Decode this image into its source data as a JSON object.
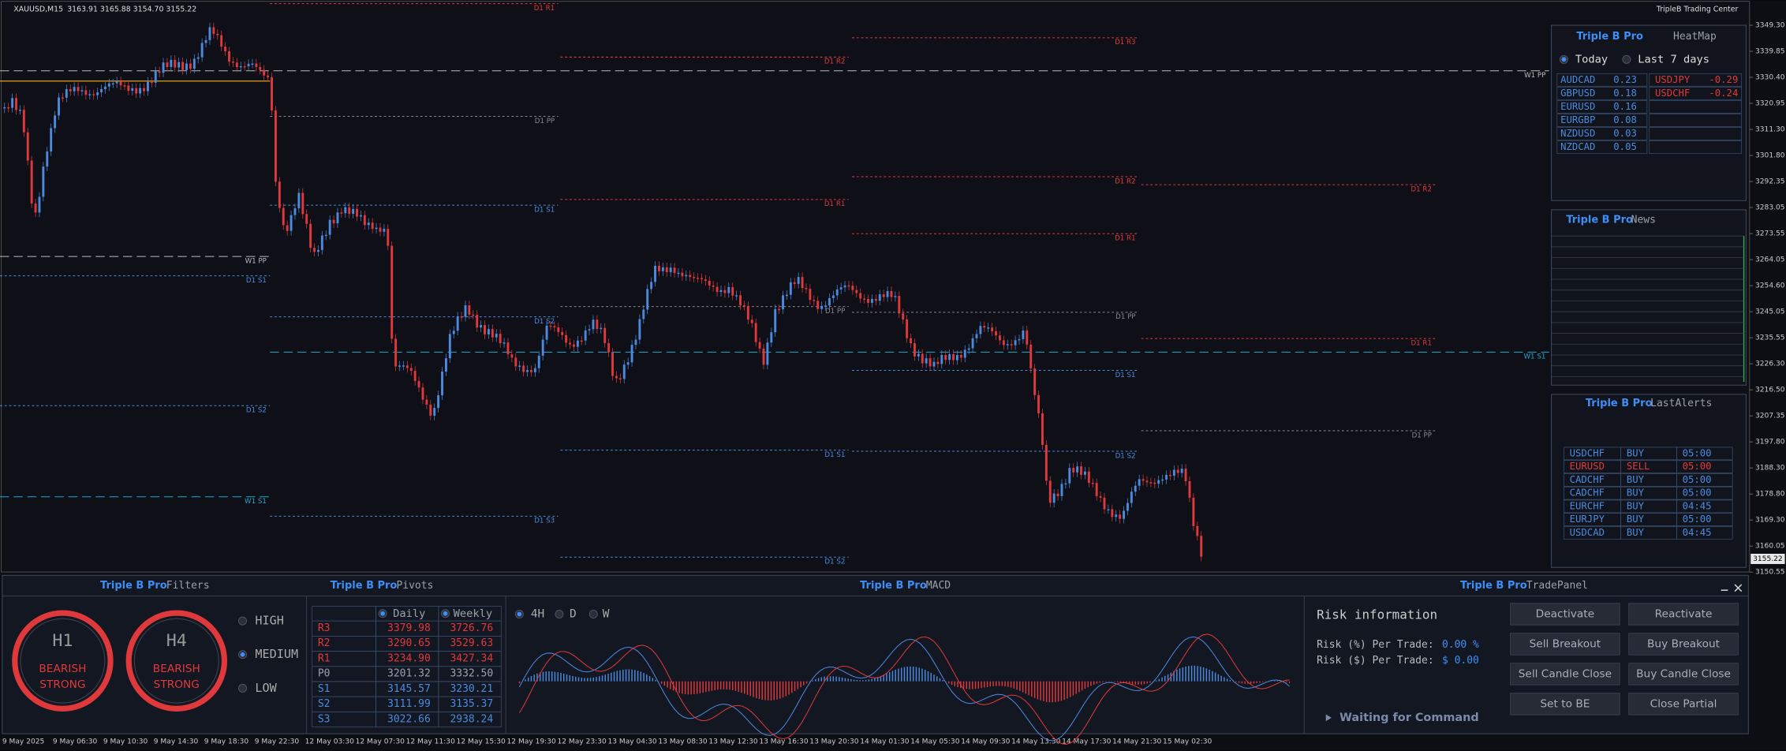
{
  "chart": {
    "symbol": "XAUUSD,M15",
    "ohlc": "3163.91 3165.88 3154.70 3155.22",
    "brand": "TripleB Trading Center",
    "price_axis": [
      "3349.30",
      "3339.85",
      "3330.40",
      "3320.95",
      "3311.30",
      "3301.80",
      "3292.35",
      "3283.05",
      "3273.55",
      "3264.05",
      "3254.60",
      "3245.05",
      "3235.55",
      "3226.30",
      "3216.50",
      "3207.35",
      "3197.80",
      "3188.30",
      "3178.80",
      "3169.30",
      "3160.05",
      "3150.55"
    ],
    "current_price": "3155.22",
    "time_axis": [
      "9 May 2025",
      "9 May 06:30",
      "9 May 10:30",
      "9 May 14:30",
      "9 May 18:30",
      "9 May 22:30",
      "12 May 03:30",
      "12 May 07:30",
      "12 May 11:30",
      "12 May 15:30",
      "12 May 19:30",
      "12 May 23:30",
      "13 May 04:30",
      "13 May 08:30",
      "13 May 12:30",
      "13 May 16:30",
      "13 May 20:30",
      "14 May 01:30",
      "14 May 05:30",
      "14 May 09:30",
      "14 May 13:30",
      "14 May 17:30",
      "14 May 21:30",
      "15 May 02:30"
    ],
    "levels": [
      "D1 R1",
      "D1 R2",
      "D1 R3",
      "W1 PP",
      "D1 PP",
      "D1 R2",
      "D1 R2",
      "D1 R1",
      "D1 S1",
      "D1 R1",
      "W1 PP",
      "D1 S1",
      "D1 PP",
      "D1 PP",
      "D1 S2",
      "D1 R1",
      "W1 S1",
      "D1 S1",
      "D1 S2",
      "D1 PP",
      "D1 S1",
      "D1 S2",
      "W1 S1",
      "D1 S3",
      "D1 S2"
    ]
  },
  "heatmap": {
    "brand": "Triple B Pro",
    "title": "HeatMap",
    "options": [
      "Today",
      "Last 7 days"
    ],
    "positive": [
      [
        "AUDCAD",
        "0.23"
      ],
      [
        "GBPUSD",
        "0.18"
      ],
      [
        "EURUSD",
        "0.16"
      ],
      [
        "EURGBP",
        "0.08"
      ],
      [
        "NZDUSD",
        "0.03"
      ],
      [
        "NZDCAD",
        "0.05"
      ]
    ],
    "negative": [
      [
        "USDJPY",
        "-0.29"
      ],
      [
        "USDCHF",
        "-0.24"
      ]
    ]
  },
  "news": {
    "brand": "Triple B Pro",
    "title": "News"
  },
  "alerts": {
    "brand": "Triple B Pro",
    "title": "LastAlerts",
    "rows": [
      [
        "USDCHF",
        "BUY",
        "05:00"
      ],
      [
        "EURUSD",
        "SELL",
        "05:00"
      ],
      [
        "CADCHF",
        "BUY",
        "05:00"
      ],
      [
        "CADCHF",
        "BUY",
        "05:00"
      ],
      [
        "EURCHF",
        "BUY",
        "04:45"
      ],
      [
        "EURJPY",
        "BUY",
        "05:00"
      ],
      [
        "USDCAD",
        "BUY",
        "04:45"
      ]
    ]
  },
  "filters": {
    "brand": "Triple B Pro",
    "title": "Filters",
    "gauges": [
      {
        "timeframe": "H1",
        "bias": "BEARISH",
        "strength": "STRONG"
      },
      {
        "timeframe": "H4",
        "bias": "BEARISH",
        "strength": "STRONG"
      }
    ],
    "levels": [
      "HIGH",
      "MEDIUM",
      "LOW"
    ]
  },
  "pivots": {
    "brand": "Triple B Pro",
    "title": "Pivots",
    "columns": [
      "Daily",
      "Weekly"
    ],
    "rows": [
      [
        "R3",
        "3379.98",
        "3726.76"
      ],
      [
        "R2",
        "3290.65",
        "3529.63"
      ],
      [
        "R1",
        "3234.90",
        "3427.34"
      ],
      [
        "P0",
        "3201.32",
        "3332.50"
      ],
      [
        "S1",
        "3145.57",
        "3230.21"
      ],
      [
        "S2",
        "3111.99",
        "3135.37"
      ],
      [
        "S3",
        "3022.66",
        "2938.24"
      ]
    ]
  },
  "macd": {
    "brand": "Triple B Pro",
    "title": "MACD",
    "timeframes": [
      "4H",
      "D",
      "W"
    ]
  },
  "trade_panel": {
    "brand": "Triple B Pro",
    "title": "TradePanel",
    "risk_title": "Risk information",
    "risk_pct_label": "Risk (%) Per Trade:",
    "risk_pct": "0.00 %",
    "risk_usd_label": "Risk ($) Per Trade:",
    "risk_usd": "$ 0.00",
    "status": "Waiting for Command",
    "buttons": [
      "Deactivate",
      "Reactivate",
      "Sell Breakout",
      "Buy Breakout",
      "Sell Candle Close",
      "Buy Candle Close",
      "Set to BE",
      "Close Partial"
    ]
  }
}
